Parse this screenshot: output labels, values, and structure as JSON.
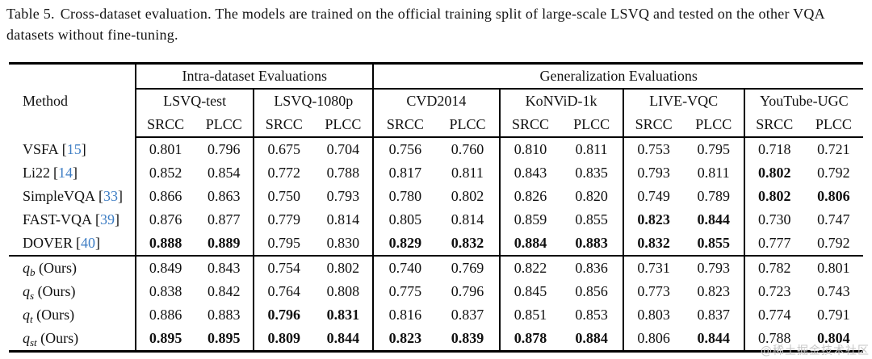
{
  "caption": {
    "label": "Table 5.",
    "text": "Cross-dataset evaluation. The models are trained on the official training split of large-scale LSVQ and tested on the other VQA datasets without fine-tuning."
  },
  "colors": {
    "citation_link": "#3d7dc4"
  },
  "table": {
    "method_header": "Method",
    "group_headers": [
      {
        "label": "Intra-dataset Evaluations"
      },
      {
        "label": "Generalization Evaluations"
      }
    ],
    "datasets": [
      "LSVQ-test",
      "LSVQ-1080p",
      "CVD2014",
      "KoNViD-1k",
      "LIVE-VQC",
      "YouTube-UGC"
    ],
    "metric_headers": [
      "SRCC",
      "PLCC"
    ],
    "cite_brackets": [
      "[",
      "]"
    ],
    "rows": [
      {
        "method": "VSFA",
        "cite": "15",
        "values": [
          "0.801",
          "0.796",
          "0.675",
          "0.704",
          "0.756",
          "0.760",
          "0.810",
          "0.811",
          "0.753",
          "0.795",
          "0.718",
          "0.721"
        ],
        "bold": []
      },
      {
        "method": "Li22",
        "cite": "14",
        "values": [
          "0.852",
          "0.854",
          "0.772",
          "0.788",
          "0.817",
          "0.811",
          "0.843",
          "0.835",
          "0.793",
          "0.811",
          "0.802",
          "0.792"
        ],
        "bold": [
          10
        ]
      },
      {
        "method": "SimpleVQA",
        "cite": "33",
        "values": [
          "0.866",
          "0.863",
          "0.750",
          "0.793",
          "0.780",
          "0.802",
          "0.826",
          "0.820",
          "0.749",
          "0.789",
          "0.802",
          "0.806"
        ],
        "bold": [
          10,
          11
        ]
      },
      {
        "method": "FAST-VQA",
        "cite": "39",
        "values": [
          "0.876",
          "0.877",
          "0.779",
          "0.814",
          "0.805",
          "0.814",
          "0.859",
          "0.855",
          "0.823",
          "0.844",
          "0.730",
          "0.747"
        ],
        "bold": [
          8,
          9
        ]
      },
      {
        "method": "DOVER",
        "cite": "40",
        "values": [
          "0.888",
          "0.889",
          "0.795",
          "0.830",
          "0.829",
          "0.832",
          "0.884",
          "0.883",
          "0.832",
          "0.855",
          "0.777",
          "0.792"
        ],
        "bold": [
          0,
          1,
          4,
          5,
          6,
          7,
          8,
          9
        ],
        "separator_below": true
      },
      {
        "method_var": "q",
        "method_sub": "b",
        "method_suffix": " (Ours)",
        "values": [
          "0.849",
          "0.843",
          "0.754",
          "0.802",
          "0.740",
          "0.769",
          "0.822",
          "0.836",
          "0.731",
          "0.793",
          "0.782",
          "0.801"
        ],
        "bold": []
      },
      {
        "method_var": "q",
        "method_sub": "s",
        "method_suffix": " (Ours)",
        "values": [
          "0.838",
          "0.842",
          "0.764",
          "0.808",
          "0.775",
          "0.796",
          "0.845",
          "0.856",
          "0.773",
          "0.823",
          "0.723",
          "0.743"
        ],
        "bold": []
      },
      {
        "method_var": "q",
        "method_sub": "t",
        "method_suffix": " (Ours)",
        "values": [
          "0.886",
          "0.883",
          "0.796",
          "0.831",
          "0.816",
          "0.837",
          "0.851",
          "0.853",
          "0.803",
          "0.837",
          "0.774",
          "0.791"
        ],
        "bold": [
          2,
          3
        ]
      },
      {
        "method_var": "q",
        "method_sub": "st",
        "method_suffix": " (Ours)",
        "values": [
          "0.895",
          "0.895",
          "0.809",
          "0.844",
          "0.823",
          "0.839",
          "0.878",
          "0.884",
          "0.806",
          "0.844",
          "0.788",
          "0.804"
        ],
        "bold": [
          0,
          1,
          2,
          3,
          4,
          5,
          6,
          7,
          9,
          11
        ]
      }
    ]
  },
  "watermark": "@稀土掘金技术社区"
}
